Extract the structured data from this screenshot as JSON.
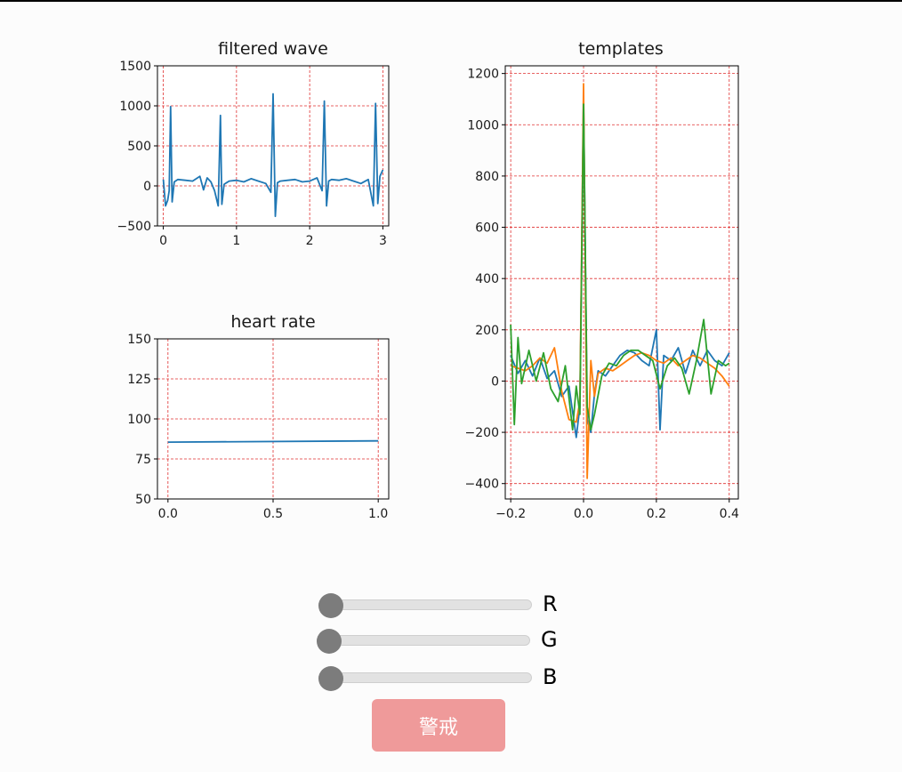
{
  "controls": {
    "sliders": [
      {
        "label": "R",
        "value": 0,
        "min": 0,
        "max": 255
      },
      {
        "label": "G",
        "value": 0,
        "min": 0,
        "max": 255
      },
      {
        "label": "B",
        "value": 0,
        "min": 0,
        "max": 255
      }
    ],
    "alarm_button": {
      "label": "警戒",
      "color": "#ef9a9a"
    }
  },
  "chart_data": [
    {
      "type": "line",
      "title": "filtered wave",
      "xlim": [
        -0.08,
        3.08
      ],
      "ylim": [
        -500,
        1500
      ],
      "xticks": [
        0,
        1,
        2,
        3
      ],
      "yticks": [
        -500,
        0,
        500,
        1000,
        1500
      ],
      "xtick_labels": [
        "0",
        "1",
        "2",
        "3"
      ],
      "ytick_labels": [
        "−500",
        "0",
        "500",
        "1000",
        "1500"
      ],
      "grid": true,
      "series": [
        {
          "color": "#1f77b4",
          "beats_at": [
            0.1,
            0.78,
            1.5,
            2.2,
            2.9
          ],
          "beat_peaks": [
            990,
            880,
            1150,
            1060,
            1030
          ],
          "x": [
            0,
            0.03,
            0.06,
            0.08,
            0.1,
            0.12,
            0.15,
            0.2,
            0.3,
            0.4,
            0.5,
            0.55,
            0.6,
            0.65,
            0.7,
            0.75,
            0.78,
            0.8,
            0.83,
            0.9,
            1.0,
            1.1,
            1.2,
            1.3,
            1.4,
            1.47,
            1.5,
            1.53,
            1.56,
            1.6,
            1.7,
            1.8,
            1.9,
            2.0,
            2.1,
            2.17,
            2.2,
            2.23,
            2.26,
            2.3,
            2.4,
            2.5,
            2.6,
            2.7,
            2.8,
            2.87,
            2.9,
            2.93,
            2.96,
            3.0
          ],
          "y": [
            80,
            -250,
            -180,
            -60,
            990,
            -200,
            50,
            80,
            70,
            60,
            120,
            -50,
            100,
            50,
            -60,
            -250,
            880,
            -230,
            20,
            60,
            70,
            50,
            90,
            60,
            30,
            -80,
            1150,
            -380,
            40,
            60,
            70,
            80,
            50,
            60,
            100,
            -60,
            1060,
            -250,
            60,
            80,
            70,
            90,
            60,
            30,
            80,
            -250,
            1030,
            -220,
            120,
            200
          ]
        }
      ]
    },
    {
      "type": "line",
      "title": "heart rate",
      "xlim": [
        -0.05,
        1.05
      ],
      "ylim": [
        50,
        150
      ],
      "xticks": [
        0,
        0.5,
        1.0
      ],
      "yticks": [
        50,
        75,
        100,
        125,
        150
      ],
      "xtick_labels": [
        "0.0",
        "0.5",
        "1.0"
      ],
      "ytick_labels": [
        "50",
        "75",
        "100",
        "125",
        "150"
      ],
      "grid": true,
      "series": [
        {
          "color": "#1f77b4",
          "x": [
            0,
            1
          ],
          "y": [
            85.5,
            86.3
          ]
        }
      ]
    },
    {
      "type": "line",
      "title": "templates",
      "xlim": [
        -0.215,
        0.425
      ],
      "ylim": [
        -460,
        1230
      ],
      "xticks": [
        -0.2,
        0.0,
        0.2,
        0.4
      ],
      "yticks": [
        -400,
        -200,
        0,
        200,
        400,
        600,
        800,
        1000,
        1200
      ],
      "xtick_labels": [
        "−0.2",
        "0.0",
        "0.2",
        "0.4"
      ],
      "ytick_labels": [
        "−400",
        "−200",
        "0",
        "200",
        "400",
        "600",
        "800",
        "1000",
        "1200"
      ],
      "grid": true,
      "series": [
        {
          "color": "#1f77b4",
          "x": [
            -0.2,
            -0.18,
            -0.16,
            -0.14,
            -0.12,
            -0.1,
            -0.08,
            -0.06,
            -0.04,
            -0.02,
            -0.01,
            0.0,
            0.01,
            0.02,
            0.03,
            0.04,
            0.06,
            0.08,
            0.1,
            0.12,
            0.14,
            0.16,
            0.18,
            0.2,
            0.21,
            0.22,
            0.24,
            0.26,
            0.28,
            0.3,
            0.32,
            0.34,
            0.36,
            0.38,
            0.4
          ],
          "y": [
            100,
            30,
            80,
            20,
            90,
            10,
            40,
            -60,
            -20,
            -220,
            -100,
            1100,
            -150,
            -200,
            -50,
            40,
            20,
            60,
            100,
            120,
            110,
            80,
            60,
            200,
            -190,
            100,
            80,
            130,
            30,
            120,
            60,
            120,
            80,
            60,
            110
          ]
        },
        {
          "color": "#ff7f0e",
          "x": [
            -0.2,
            -0.18,
            -0.16,
            -0.14,
            -0.12,
            -0.1,
            -0.08,
            -0.06,
            -0.04,
            -0.02,
            -0.01,
            0.0,
            0.01,
            0.02,
            0.03,
            0.04,
            0.06,
            0.08,
            0.1,
            0.12,
            0.14,
            0.16,
            0.18,
            0.2,
            0.22,
            0.24,
            0.26,
            0.28,
            0.3,
            0.32,
            0.34,
            0.36,
            0.38,
            0.4
          ],
          "y": [
            60,
            50,
            40,
            60,
            90,
            70,
            130,
            -40,
            -150,
            -160,
            -80,
            1160,
            -380,
            80,
            -60,
            30,
            50,
            40,
            60,
            80,
            100,
            110,
            100,
            80,
            70,
            90,
            60,
            80,
            100,
            90,
            70,
            50,
            20,
            -20
          ]
        },
        {
          "color": "#2ca02c",
          "x": [
            -0.2,
            -0.19,
            -0.18,
            -0.17,
            -0.15,
            -0.13,
            -0.11,
            -0.09,
            -0.07,
            -0.05,
            -0.03,
            -0.02,
            -0.01,
            0.0,
            0.01,
            0.02,
            0.03,
            0.05,
            0.07,
            0.09,
            0.11,
            0.13,
            0.15,
            0.17,
            0.19,
            0.21,
            0.23,
            0.25,
            0.27,
            0.29,
            0.31,
            0.33,
            0.35,
            0.37,
            0.39,
            0.4
          ],
          "y": [
            220,
            -170,
            170,
            -10,
            120,
            0,
            110,
            -30,
            -80,
            60,
            -190,
            -20,
            -130,
            1080,
            -100,
            -190,
            -130,
            20,
            70,
            60,
            100,
            120,
            120,
            100,
            80,
            -30,
            60,
            90,
            50,
            -50,
            80,
            240,
            -50,
            80,
            60,
            70
          ]
        }
      ]
    }
  ]
}
